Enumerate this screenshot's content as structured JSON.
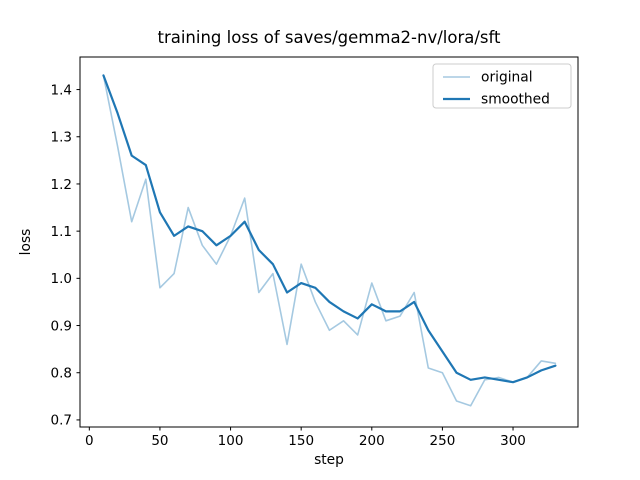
{
  "chart_data": {
    "type": "line",
    "title": "training loss of saves/gemma2-nv/lora/sft",
    "xlabel": "step",
    "ylabel": "loss",
    "x": [
      10,
      20,
      30,
      40,
      50,
      60,
      70,
      80,
      90,
      100,
      110,
      120,
      130,
      140,
      150,
      160,
      170,
      180,
      190,
      200,
      210,
      220,
      230,
      240,
      250,
      260,
      270,
      280,
      290,
      300,
      310,
      320,
      330
    ],
    "series": [
      {
        "name": "original",
        "color": "#a5c9e1",
        "width": 1.6,
        "values": [
          1.43,
          1.28,
          1.12,
          1.21,
          0.98,
          1.01,
          1.15,
          1.07,
          1.03,
          1.09,
          1.17,
          0.97,
          1.01,
          0.86,
          1.03,
          0.95,
          0.89,
          0.91,
          0.88,
          0.99,
          0.91,
          0.92,
          0.97,
          0.81,
          0.8,
          0.74,
          0.73,
          0.785,
          0.79,
          0.78,
          0.79,
          0.825,
          0.82
        ]
      },
      {
        "name": "smoothed",
        "color": "#1f77b4",
        "width": 2.2,
        "values": [
          1.43,
          1.35,
          1.26,
          1.24,
          1.14,
          1.09,
          1.11,
          1.1,
          1.07,
          1.09,
          1.12,
          1.06,
          1.03,
          0.97,
          0.99,
          0.98,
          0.95,
          0.93,
          0.915,
          0.945,
          0.93,
          0.93,
          0.95,
          0.89,
          0.845,
          0.8,
          0.785,
          0.79,
          0.785,
          0.78,
          0.79,
          0.805,
          0.815
        ]
      }
    ],
    "xlim": [
      -6.6,
      346
    ],
    "ylim": [
      0.685,
      1.469
    ],
    "xticks": [
      0,
      50,
      100,
      150,
      200,
      250,
      300
    ],
    "yticks": [
      0.7,
      0.8,
      0.9,
      1.0,
      1.1,
      1.2,
      1.3,
      1.4
    ],
    "grid": false,
    "legend_position": "upper right",
    "axis_color": "#000000",
    "legend_border_color": "#cccccc",
    "background_color": "#ffffff"
  }
}
